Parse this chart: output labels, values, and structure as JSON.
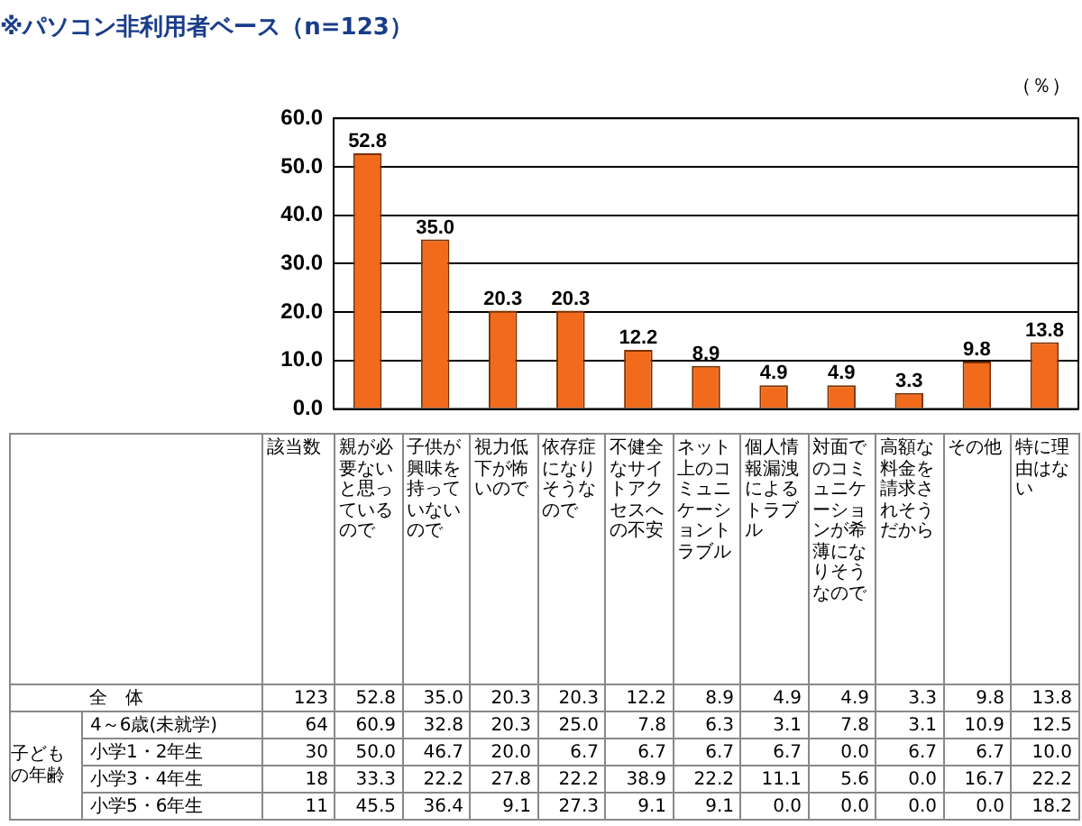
{
  "chart_data": [
    {
      "type": "bar",
      "title": "※パソコン非利用者ベース（n=123）",
      "ylabel": "（％）",
      "categories": [
        null,
        null,
        null,
        null,
        null,
        null,
        null,
        null,
        null,
        null,
        null
      ],
      "values": [
        52.8,
        35.0,
        20.3,
        20.3,
        12.2,
        8.9,
        4.9,
        4.9,
        3.3,
        9.8,
        13.8
      ],
      "value_labels": [
        "52.8",
        "35.0",
        "20.3",
        "20.3",
        "12.2",
        "8.9",
        "4.9",
        "4.9",
        "3.3",
        "9.8",
        "13.8"
      ],
      "color": "#f26b1d",
      "ylim": [
        0,
        60
      ],
      "yticks": [
        {
          "value": 0,
          "label": "0.0"
        },
        {
          "value": 10,
          "label": "10.0"
        },
        {
          "value": 20,
          "label": "20.0"
        },
        {
          "value": 30,
          "label": "30.0"
        },
        {
          "value": 40,
          "label": "40.0"
        },
        {
          "value": 50,
          "label": "50.0"
        },
        {
          "value": 60,
          "label": "60.0"
        }
      ],
      "grid": "y",
      "tick_labels": "y"
    },
    {
      "type": "heatmap",
      "ylabel": "子どもの年齢",
      "categories": [
        "該当数",
        "親が必要ないと思っているので",
        "子供が興味を持っていないので",
        "視力低下が怖いので",
        "依存症になりそうなので",
        "不健全なサイトアクセスへの不安",
        "ネット上のコミュニケーショントラブル",
        "個人情報漏洩によるトラブル",
        "対面でのコミュニケーションが希薄になりそうなので",
        "高額な料金を請求されそうだから",
        "その他",
        "特に理由はない"
      ],
      "y_categories": [
        "全　体",
        "4～6歳(未就学)",
        "小学1・2年生",
        "小学3・4年生",
        "小学5・6年生"
      ],
      "cells": [
        [
          123,
          52.8,
          35.0,
          20.3,
          20.3,
          12.2,
          8.9,
          4.9,
          4.9,
          3.3,
          9.8,
          13.8
        ],
        [
          64,
          60.9,
          32.8,
          20.3,
          25.0,
          7.8,
          6.3,
          3.1,
          7.8,
          3.1,
          10.9,
          12.5
        ],
        [
          30,
          50.0,
          46.7,
          20.0,
          6.7,
          6.7,
          6.7,
          6.7,
          0.0,
          6.7,
          6.7,
          10.0
        ],
        [
          18,
          33.3,
          22.2,
          27.8,
          22.2,
          38.9,
          22.2,
          11.1,
          5.6,
          0.0,
          16.7,
          22.2
        ],
        [
          11,
          45.5,
          36.4,
          9.1,
          27.3,
          9.1,
          9.1,
          0.0,
          0.0,
          0.0,
          0.0,
          18.2
        ]
      ],
      "cell_labels": [
        [
          "123",
          "52.8",
          "35.0",
          "20.3",
          "20.3",
          "12.2",
          "8.9",
          "4.9",
          "4.9",
          "3.3",
          "9.8",
          "13.8"
        ],
        [
          "64",
          "60.9",
          "32.8",
          "20.3",
          "25.0",
          "7.8",
          "6.3",
          "3.1",
          "7.8",
          "3.1",
          "10.9",
          "12.5"
        ],
        [
          "30",
          "50.0",
          "46.7",
          "20.0",
          "6.7",
          "6.7",
          "6.7",
          "6.7",
          "0.0",
          "6.7",
          "6.7",
          "10.0"
        ],
        [
          "18",
          "33.3",
          "22.2",
          "27.8",
          "22.2",
          "38.9",
          "22.2",
          "11.1",
          "5.6",
          "0.0",
          "16.7",
          "22.2"
        ],
        [
          "11",
          "45.5",
          "36.4",
          "9.1",
          "27.3",
          "9.1",
          "9.1",
          "0.0",
          "0.0",
          "0.0",
          "0.0",
          "18.2"
        ]
      ]
    }
  ]
}
